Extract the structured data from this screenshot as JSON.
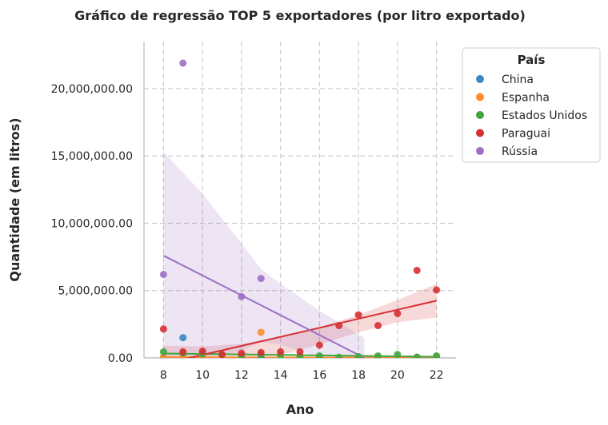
{
  "chart_data": {
    "type": "scatter",
    "title": "Gráfico de regressão TOP 5 exportadores (por litro exportado)",
    "xlabel": "Ano",
    "ylabel": "Quantidade (em litros)",
    "xlim": [
      7,
      23
    ],
    "ylim": [
      0,
      23500000
    ],
    "x_ticks": [
      8,
      10,
      12,
      14,
      16,
      18,
      20,
      22
    ],
    "x_tick_labels": [
      "8",
      "10",
      "12",
      "14",
      "16",
      "18",
      "20",
      "22"
    ],
    "y_ticks": [
      0,
      5000000,
      10000000,
      15000000,
      20000000
    ],
    "y_tick_labels": [
      "0.00",
      "5,000,000.00",
      "10,000,000.00",
      "15,000,000.00",
      "20,000,000.00"
    ],
    "grid": true,
    "legend": {
      "title": "País",
      "position": "top-right (outside)"
    },
    "series": [
      {
        "name": "China",
        "color": "#3a86c5",
        "points": [
          [
            8,
            20000
          ],
          [
            9,
            1500000
          ],
          [
            10,
            15000
          ],
          [
            11,
            5000
          ],
          [
            12,
            5000
          ],
          [
            13,
            10000
          ],
          [
            14,
            5000
          ],
          [
            15,
            5000
          ],
          [
            16,
            5000
          ],
          [
            17,
            5000
          ],
          [
            18,
            5000
          ],
          [
            19,
            5000
          ],
          [
            20,
            5000
          ],
          [
            21,
            50000
          ],
          [
            22,
            30000
          ]
        ],
        "fit": [
          [
            8,
            30000
          ],
          [
            22,
            20000
          ]
        ]
      },
      {
        "name": "Espanha",
        "color": "#ff8c2e",
        "points": [
          [
            8,
            80000
          ],
          [
            9,
            40000
          ],
          [
            10,
            60000
          ],
          [
            11,
            30000
          ],
          [
            12,
            20000
          ],
          [
            13,
            1900000
          ],
          [
            14,
            30000
          ],
          [
            15,
            20000
          ],
          [
            16,
            20000
          ],
          [
            17,
            15000
          ],
          [
            18,
            10000
          ],
          [
            19,
            10000
          ],
          [
            20,
            10000
          ],
          [
            21,
            5000
          ],
          [
            22,
            5000
          ]
        ],
        "fit": [
          [
            8,
            50000
          ],
          [
            22,
            10000
          ]
        ]
      },
      {
        "name": "Estados Unidos",
        "color": "#3fa63f",
        "points": [
          [
            8,
            450000
          ],
          [
            9,
            350000
          ],
          [
            10,
            300000
          ],
          [
            11,
            250000
          ],
          [
            12,
            200000
          ],
          [
            13,
            250000
          ],
          [
            14,
            200000
          ],
          [
            15,
            150000
          ],
          [
            16,
            150000
          ],
          [
            17,
            50000
          ],
          [
            18,
            100000
          ],
          [
            19,
            150000
          ],
          [
            20,
            250000
          ],
          [
            21,
            50000
          ],
          [
            22,
            150000
          ]
        ],
        "fit": [
          [
            8,
            330000
          ],
          [
            22,
            80000
          ]
        ]
      },
      {
        "name": "Paraguai",
        "color": "#d62f33",
        "points": [
          [
            8,
            2150000
          ],
          [
            9,
            450000
          ],
          [
            10,
            500000
          ],
          [
            11,
            250000
          ],
          [
            12,
            350000
          ],
          [
            13,
            400000
          ],
          [
            14,
            450000
          ],
          [
            15,
            450000
          ],
          [
            16,
            950000
          ],
          [
            17,
            2400000
          ],
          [
            18,
            3200000
          ],
          [
            19,
            2400000
          ],
          [
            20,
            3300000
          ],
          [
            21,
            6500000
          ],
          [
            22,
            5050000
          ]
        ],
        "fit": [
          [
            8,
            -450000
          ],
          [
            22,
            4250000
          ]
        ],
        "ci": {
          "upper": [
            [
              8,
              900000
            ],
            [
              10,
              850000
            ],
            [
              12,
              1050000
            ],
            [
              14,
              1550000
            ],
            [
              16,
              2300000
            ],
            [
              18,
              3200000
            ],
            [
              20,
              4300000
            ],
            [
              22,
              5500000
            ]
          ],
          "lower": [
            [
              8,
              -1800000
            ],
            [
              10,
              -1150000
            ],
            [
              12,
              -400000
            ],
            [
              14,
              200000
            ],
            [
              16,
              1000000
            ],
            [
              18,
              1900000
            ],
            [
              20,
              2650000
            ],
            [
              22,
              3000000
            ]
          ]
        }
      },
      {
        "name": "Rússia",
        "color": "#9d6fc4",
        "points": [
          [
            8,
            6200000
          ],
          [
            9,
            21900000
          ],
          [
            12,
            4550000
          ],
          [
            13,
            5900000
          ]
        ],
        "fit": [
          [
            8,
            7600000
          ],
          [
            18.3,
            0
          ]
        ],
        "ci": {
          "upper": [
            [
              8,
              15300000
            ],
            [
              10,
              12200000
            ],
            [
              12,
              8500000
            ],
            [
              13,
              6600000
            ],
            [
              14,
              5500000
            ],
            [
              16,
              3500000
            ],
            [
              18.3,
              1500000
            ]
          ],
          "lower": [
            [
              8,
              0
            ],
            [
              10,
              0
            ],
            [
              12,
              500000
            ],
            [
              13,
              1200000
            ],
            [
              14,
              1000000
            ],
            [
              16,
              0
            ],
            [
              18.3,
              0
            ]
          ]
        }
      }
    ]
  }
}
